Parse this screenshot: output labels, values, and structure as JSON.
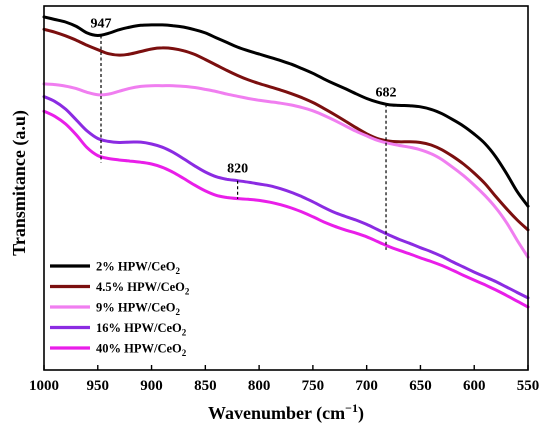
{
  "chart_data": {
    "type": "line",
    "xlabel": "Wavenumber (cm",
    "xlabel_sup": "−1",
    "xlabel_close": ")",
    "ylabel": "Transmitance (a.u)",
    "xlim": [
      1000,
      550
    ],
    "x_reversed": true,
    "ylim": [
      0,
      100
    ],
    "y_ticks_shown": false,
    "grid": false,
    "legend_position": "bottom-left",
    "x_ticks": [
      {
        "value": 1000,
        "label": "1000"
      },
      {
        "value": 950,
        "label": "950"
      },
      {
        "value": 900,
        "label": "900"
      },
      {
        "value": 850,
        "label": "850"
      },
      {
        "value": 800,
        "label": "800"
      },
      {
        "value": 750,
        "label": "750"
      },
      {
        "value": 700,
        "label": "700"
      },
      {
        "value": 650,
        "label": "650"
      },
      {
        "value": 600,
        "label": "600"
      },
      {
        "value": 550,
        "label": "550"
      }
    ],
    "series": [
      {
        "name": "2% HPW/CeO",
        "sub": "2",
        "color": "#000000",
        "points": [
          [
            1000,
            97
          ],
          [
            990,
            96.3
          ],
          [
            980,
            95.6
          ],
          [
            970,
            94.4
          ],
          [
            960,
            92.6
          ],
          [
            950,
            91.9
          ],
          [
            940,
            92.5
          ],
          [
            930,
            93.5
          ],
          [
            920,
            94.2
          ],
          [
            910,
            94.7
          ],
          [
            900,
            94.8
          ],
          [
            890,
            94.8
          ],
          [
            880,
            94.6
          ],
          [
            870,
            94.2
          ],
          [
            860,
            93.5
          ],
          [
            850,
            92.6
          ],
          [
            840,
            91.3
          ],
          [
            830,
            90
          ],
          [
            820,
            88.7
          ],
          [
            810,
            87.7
          ],
          [
            800,
            86.8
          ],
          [
            790,
            85.9
          ],
          [
            780,
            85
          ],
          [
            770,
            84
          ],
          [
            760,
            82.8
          ],
          [
            750,
            81.5
          ],
          [
            740,
            80
          ],
          [
            730,
            78.6
          ],
          [
            720,
            77.3
          ],
          [
            710,
            75.9
          ],
          [
            700,
            74.6
          ],
          [
            690,
            73.6
          ],
          [
            680,
            72.9
          ],
          [
            670,
            72.7
          ],
          [
            660,
            72.6
          ],
          [
            650,
            72.3
          ],
          [
            640,
            71.6
          ],
          [
            630,
            70.4
          ],
          [
            620,
            68.8
          ],
          [
            610,
            67
          ],
          [
            600,
            64.8
          ],
          [
            590,
            62.2
          ],
          [
            580,
            58.6
          ],
          [
            570,
            54
          ],
          [
            560,
            49
          ],
          [
            550,
            45
          ]
        ]
      },
      {
        "name": "4.5% HPW/CeO",
        "sub": "2",
        "color": "#7b0f0f",
        "points": [
          [
            1000,
            93.6
          ],
          [
            990,
            92.8
          ],
          [
            980,
            91.8
          ],
          [
            970,
            90.6
          ],
          [
            960,
            89.2
          ],
          [
            950,
            88
          ],
          [
            940,
            86.9
          ],
          [
            930,
            86.5
          ],
          [
            920,
            86.8
          ],
          [
            910,
            87.5
          ],
          [
            900,
            88.2
          ],
          [
            890,
            88.5
          ],
          [
            880,
            88.3
          ],
          [
            870,
            87.7
          ],
          [
            860,
            86.7
          ],
          [
            850,
            85.3
          ],
          [
            840,
            83.8
          ],
          [
            830,
            82.3
          ],
          [
            820,
            80.9
          ],
          [
            810,
            79.7
          ],
          [
            800,
            78.7
          ],
          [
            790,
            77.8
          ],
          [
            780,
            76.9
          ],
          [
            770,
            75.9
          ],
          [
            760,
            74.8
          ],
          [
            750,
            73.5
          ],
          [
            740,
            71.9
          ],
          [
            730,
            70.2
          ],
          [
            720,
            68.4
          ],
          [
            710,
            66.6
          ],
          [
            700,
            64.9
          ],
          [
            690,
            63.6
          ],
          [
            680,
            62.9
          ],
          [
            670,
            62.7
          ],
          [
            660,
            62.7
          ],
          [
            650,
            62.5
          ],
          [
            640,
            61.8
          ],
          [
            630,
            60.5
          ],
          [
            620,
            58.7
          ],
          [
            610,
            56.6
          ],
          [
            600,
            54.1
          ],
          [
            590,
            51.2
          ],
          [
            580,
            47.7
          ],
          [
            570,
            44.3
          ],
          [
            560,
            41.2
          ],
          [
            550,
            38.5
          ]
        ]
      },
      {
        "name": "9% HPW/CeO",
        "sub": "2",
        "color": "#f07ef0",
        "points": [
          [
            1000,
            78.6
          ],
          [
            990,
            78.4
          ],
          [
            980,
            78
          ],
          [
            970,
            77.3
          ],
          [
            960,
            76.3
          ],
          [
            950,
            75.6
          ],
          [
            940,
            75.8
          ],
          [
            930,
            76.6
          ],
          [
            920,
            77.4
          ],
          [
            910,
            77.9
          ],
          [
            900,
            78.1
          ],
          [
            890,
            78.1
          ],
          [
            880,
            78.1
          ],
          [
            870,
            77.9
          ],
          [
            860,
            77.6
          ],
          [
            850,
            77.1
          ],
          [
            840,
            76.5
          ],
          [
            830,
            75.8
          ],
          [
            820,
            75.2
          ],
          [
            810,
            74.6
          ],
          [
            800,
            74.1
          ],
          [
            790,
            73.7
          ],
          [
            780,
            73.3
          ],
          [
            770,
            72.8
          ],
          [
            760,
            72.1
          ],
          [
            750,
            71.2
          ],
          [
            740,
            70
          ],
          [
            730,
            68.6
          ],
          [
            720,
            67.1
          ],
          [
            710,
            65.6
          ],
          [
            700,
            64.3
          ],
          [
            690,
            63.1
          ],
          [
            680,
            62.3
          ],
          [
            670,
            61.7
          ],
          [
            660,
            61.2
          ],
          [
            650,
            60.5
          ],
          [
            640,
            59.4
          ],
          [
            630,
            57.8
          ],
          [
            620,
            55.7
          ],
          [
            610,
            53.4
          ],
          [
            600,
            50.8
          ],
          [
            590,
            47.9
          ],
          [
            580,
            44.6
          ],
          [
            570,
            40.5
          ],
          [
            560,
            35.6
          ],
          [
            550,
            31
          ]
        ]
      },
      {
        "name": "16% HPW/CeO",
        "sub": "2",
        "color": "#8b2be2",
        "points": [
          [
            1000,
            75.1
          ],
          [
            990,
            73.8
          ],
          [
            980,
            71.7
          ],
          [
            970,
            68.7
          ],
          [
            960,
            65.7
          ],
          [
            950,
            63.6
          ],
          [
            940,
            62.8
          ],
          [
            930,
            62.5
          ],
          [
            920,
            62.6
          ],
          [
            910,
            62.6
          ],
          [
            900,
            62.1
          ],
          [
            890,
            61.2
          ],
          [
            880,
            59.8
          ],
          [
            870,
            58
          ],
          [
            860,
            56.1
          ],
          [
            850,
            54.4
          ],
          [
            840,
            53.1
          ],
          [
            830,
            52.4
          ],
          [
            820,
            52
          ],
          [
            810,
            51.6
          ],
          [
            800,
            51.1
          ],
          [
            790,
            50.6
          ],
          [
            780,
            49.8
          ],
          [
            770,
            48.8
          ],
          [
            760,
            47.6
          ],
          [
            750,
            46.2
          ],
          [
            740,
            44.7
          ],
          [
            730,
            43.3
          ],
          [
            720,
            42.2
          ],
          [
            710,
            41.2
          ],
          [
            700,
            40
          ],
          [
            690,
            38.6
          ],
          [
            680,
            37.2
          ],
          [
            670,
            35.9
          ],
          [
            660,
            34.8
          ],
          [
            650,
            33.6
          ],
          [
            640,
            32.5
          ],
          [
            630,
            31.2
          ],
          [
            620,
            29.7
          ],
          [
            610,
            28.3
          ],
          [
            600,
            26.9
          ],
          [
            590,
            25.6
          ],
          [
            580,
            24.3
          ],
          [
            570,
            22.8
          ],
          [
            560,
            21.3
          ],
          [
            550,
            19.8
          ]
        ]
      },
      {
        "name": "40% HPW/CeO",
        "sub": "2",
        "color": "#e91ee9",
        "points": [
          [
            1000,
            71.1
          ],
          [
            990,
            69.7
          ],
          [
            980,
            67.6
          ],
          [
            970,
            64.6
          ],
          [
            960,
            61.1
          ],
          [
            950,
            58.9
          ],
          [
            940,
            58.1
          ],
          [
            930,
            57.7
          ],
          [
            920,
            57.4
          ],
          [
            910,
            57.1
          ],
          [
            900,
            56.6
          ],
          [
            890,
            55.7
          ],
          [
            880,
            54.3
          ],
          [
            870,
            52.6
          ],
          [
            860,
            50.8
          ],
          [
            850,
            49.2
          ],
          [
            840,
            48
          ],
          [
            830,
            47.4
          ],
          [
            820,
            47.1
          ],
          [
            810,
            46.9
          ],
          [
            800,
            46.6
          ],
          [
            790,
            46.1
          ],
          [
            780,
            45.4
          ],
          [
            770,
            44.5
          ],
          [
            760,
            43.4
          ],
          [
            750,
            42.1
          ],
          [
            740,
            40.7
          ],
          [
            730,
            39.5
          ],
          [
            720,
            38.5
          ],
          [
            710,
            37.6
          ],
          [
            700,
            36.6
          ],
          [
            690,
            35.3
          ],
          [
            680,
            34
          ],
          [
            670,
            32.9
          ],
          [
            660,
            31.9
          ],
          [
            650,
            30.8
          ],
          [
            640,
            29.8
          ],
          [
            630,
            28.7
          ],
          [
            620,
            27.4
          ],
          [
            610,
            26
          ],
          [
            600,
            24.7
          ],
          [
            590,
            23.4
          ],
          [
            580,
            22
          ],
          [
            570,
            20.5
          ],
          [
            560,
            18.9
          ],
          [
            550,
            17.3
          ]
        ]
      }
    ],
    "annotations": [
      {
        "label": "947",
        "x": 947,
        "y_top": 91.9,
        "y_bottom": 57
      },
      {
        "label": "682",
        "x": 682,
        "y_top": 73,
        "y_bottom": 33
      },
      {
        "label": "820",
        "x": 820,
        "y_top": 52,
        "y_bottom": 47
      }
    ]
  }
}
